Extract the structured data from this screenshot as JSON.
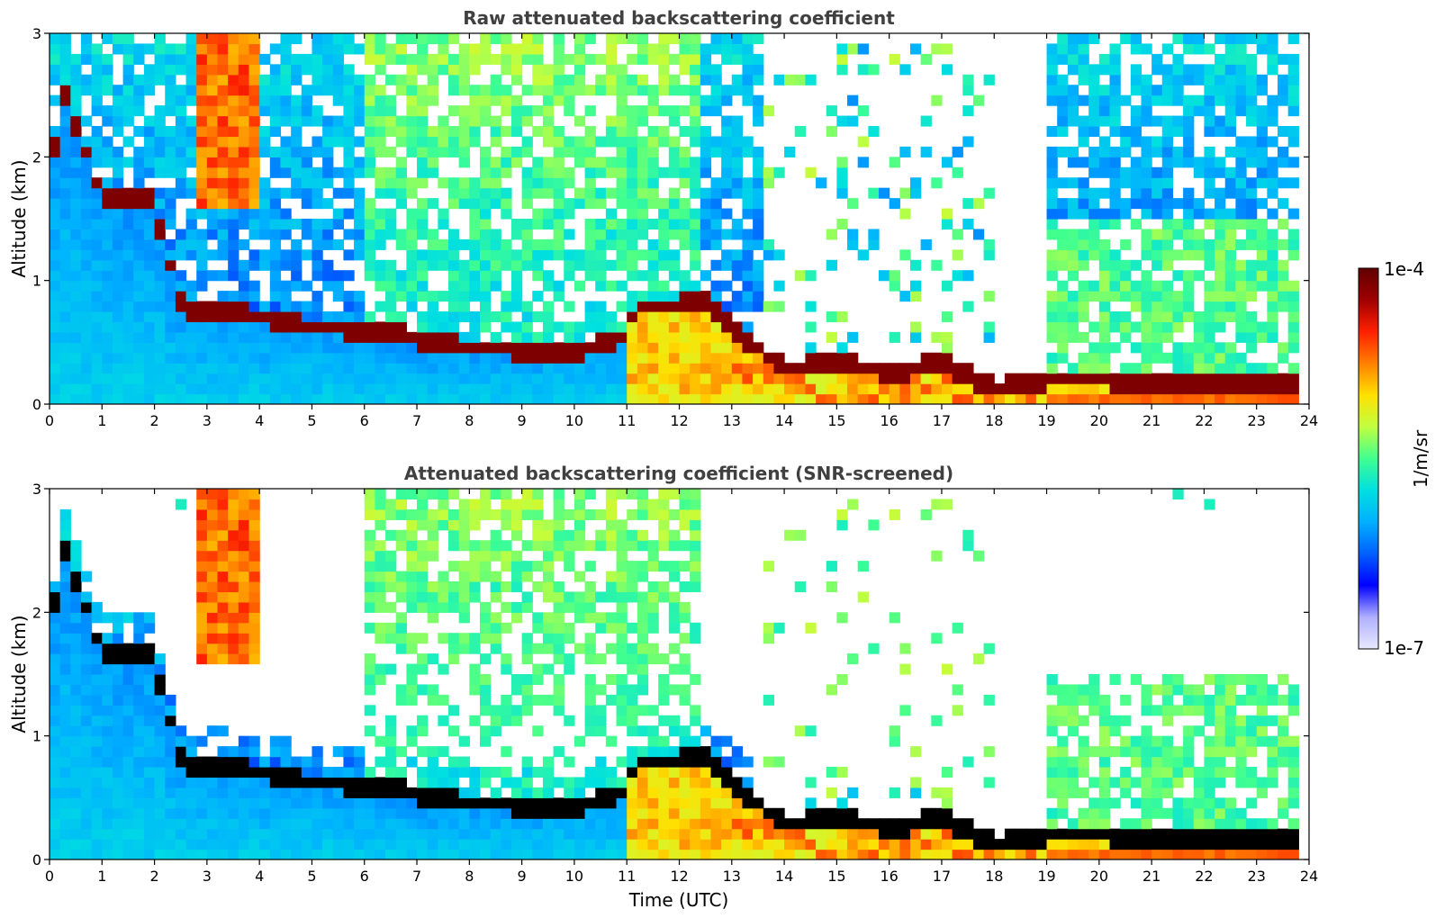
{
  "chart_data": [
    {
      "type": "heatmap",
      "title": "Raw attenuated backscattering coefficient",
      "xlabel": "",
      "ylabel": "Altitude (km)",
      "xlim": [
        0,
        24
      ],
      "ylim": [
        0,
        3
      ],
      "xticks": [
        "0",
        "1",
        "2",
        "3",
        "4",
        "5",
        "6",
        "7",
        "8",
        "9",
        "10",
        "11",
        "12",
        "13",
        "14",
        "15",
        "16",
        "17",
        "18",
        "19",
        "20",
        "21",
        "22",
        "23",
        "24"
      ],
      "yticks": [
        "0",
        "1",
        "2",
        "3"
      ],
      "color_scale": "log",
      "color_range": [
        "1e-7",
        "1e-4"
      ],
      "features": {
        "cloud_layer_km": [
          [
            0.05,
            2.0
          ],
          [
            0.3,
            2.5
          ],
          [
            1.0,
            1.68
          ],
          [
            1.9,
            1.68
          ],
          [
            2.6,
            0.72
          ],
          [
            3.2,
            0.76
          ],
          [
            5.0,
            0.63
          ],
          [
            6.5,
            0.58
          ],
          [
            7.5,
            0.48
          ],
          [
            8.5,
            0.45
          ],
          [
            10.0,
            0.43
          ],
          [
            10.9,
            0.55
          ],
          [
            11.2,
            0.78
          ],
          [
            12.5,
            0.82
          ],
          [
            13.2,
            0.55
          ],
          [
            14.0,
            0.28
          ],
          [
            15.0,
            0.35
          ],
          [
            16.0,
            0.25
          ],
          [
            17.0,
            0.33
          ],
          [
            18.0,
            0.12
          ],
          [
            19.0,
            0.2
          ],
          [
            20.0,
            0.2
          ],
          [
            21.0,
            0.18
          ],
          [
            22.0,
            0.15
          ],
          [
            23.5,
            0.18
          ]
        ],
        "high_signal_periods_utc": [
          [
            11.0,
            13.0
          ],
          [
            19.0,
            23.8
          ]
        ],
        "no_data_gap_utc": [
          18.0,
          19.0
        ]
      }
    },
    {
      "type": "heatmap",
      "title": "Attenuated backscattering coefficient (SNR-screened)",
      "xlabel": "Time (UTC)",
      "ylabel": "Altitude (km)",
      "xlim": [
        0,
        24
      ],
      "ylim": [
        0,
        3
      ],
      "xticks": [
        "0",
        "1",
        "2",
        "3",
        "4",
        "5",
        "6",
        "7",
        "8",
        "9",
        "10",
        "11",
        "12",
        "13",
        "14",
        "15",
        "16",
        "17",
        "18",
        "19",
        "20",
        "21",
        "22",
        "23",
        "24"
      ],
      "yticks": [
        "0",
        "1",
        "2",
        "3"
      ],
      "color_scale": "log",
      "color_range": [
        "1e-7",
        "1e-4"
      ],
      "features": {
        "screened_out_regions": "low-SNR pixels removed above clouds and during 14-19 UTC"
      }
    }
  ],
  "colorbar": {
    "label": "1/m/sr",
    "max_label": "1e-4",
    "min_label": "1e-7",
    "colormap": [
      "#e8e8ff",
      "#b0b0ff",
      "#0000ff",
      "#0060ff",
      "#00b0ff",
      "#00e0e0",
      "#40ff90",
      "#c0ff40",
      "#ffe000",
      "#ff8000",
      "#ff2000",
      "#a00000",
      "#600000"
    ]
  }
}
